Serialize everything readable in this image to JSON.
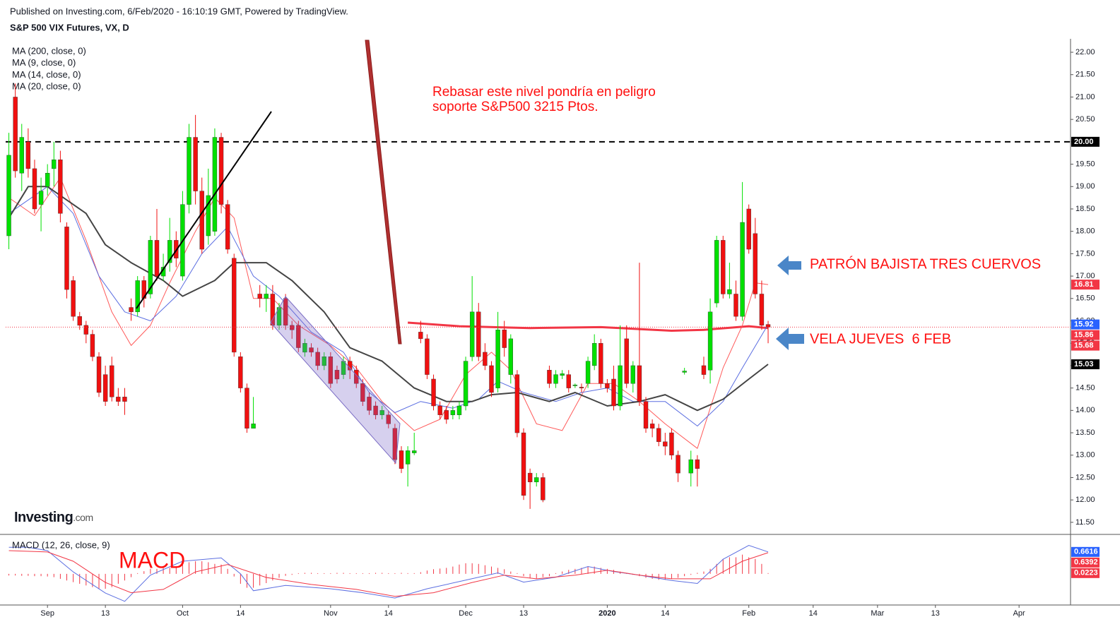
{
  "header": {
    "published": "Published on Investing.com, 6/Feb/2020 - 16:10:19 GMT, Powered by TradingView.",
    "symbol": "S&P 500 VIX Futures, VX, D"
  },
  "chart_data": [
    {
      "type": "candlestick",
      "up_color": "#00e000",
      "down_color": "#f01010",
      "open": [
        17.9,
        21.0,
        19.3,
        20.0,
        19.4,
        18.6,
        19.0,
        19.4,
        19.6,
        18.1,
        16.9,
        16.1,
        15.9,
        15.7,
        15.2,
        14.8,
        15.0,
        14.3,
        14.3,
        16.3,
        16.2,
        16.9,
        16.6,
        17.8,
        17.0,
        17.3,
        17.8,
        17.0,
        18.6,
        20.1,
        18.9,
        17.9,
        18.0,
        20.1,
        18.6,
        17.4,
        15.2,
        14.5,
        13.6,
        16.6,
        16.5,
        16.6,
        15.9,
        16.5,
        15.9,
        15.9,
        15.3,
        15.4,
        15.3,
        15.0,
        15.2,
        14.9,
        14.8,
        15.1,
        14.9,
        14.6,
        14.3,
        14.1,
        13.9,
        13.9,
        13.6,
        13.1,
        12.8,
        13.05,
        15.75,
        15.6,
        14.7,
        14.1,
        14.0,
        13.9,
        13.9,
        14.1,
        15.2,
        16.2,
        15.3,
        15.0,
        14.5,
        15.8,
        14.8,
        14.8,
        13.5,
        12.6,
        12.4,
        12.5,
        14.9,
        14.6,
        14.78,
        14.8,
        14.55,
        14.52,
        14.6,
        15.0,
        15.5,
        14.6,
        14.7,
        14.1,
        15.6,
        14.6,
        15.0,
        14.2,
        13.7,
        13.6,
        13.3,
        13.5,
        13.0,
        14.85,
        12.6,
        12.9,
        15.0,
        14.9,
        16.4,
        17.8,
        16.6,
        16.6,
        16.1,
        18.5,
        17.95,
        16.6,
        15.92
      ],
      "high": [
        20.2,
        21.3,
        20.4,
        20.3,
        19.6,
        19.2,
        19.5,
        20.0,
        19.8,
        18.2,
        17.0,
        16.2,
        16.0,
        15.8,
        15.3,
        15.0,
        15.2,
        14.5,
        14.5,
        16.5,
        17.0,
        17.0,
        17.9,
        18.5,
        17.5,
        18.3,
        18.0,
        18.9,
        20.4,
        20.6,
        19.2,
        19.4,
        20.3,
        20.2,
        18.7,
        17.5,
        15.3,
        14.6,
        14.3,
        16.8,
        16.8,
        16.8,
        16.4,
        16.6,
        16.0,
        16.0,
        15.6,
        15.5,
        15.4,
        15.3,
        15.3,
        15.0,
        15.2,
        15.2,
        15.0,
        14.7,
        14.4,
        14.2,
        14.1,
        14.0,
        13.7,
        13.2,
        13.2,
        13.5,
        16.0,
        15.7,
        14.8,
        14.2,
        14.1,
        14.1,
        14.2,
        15.2,
        17.0,
        16.4,
        15.5,
        15.1,
        16.2,
        16.0,
        15.7,
        14.9,
        13.6,
        12.7,
        12.6,
        12.6,
        15.0,
        14.9,
        14.9,
        14.9,
        14.6,
        14.6,
        15.2,
        15.7,
        15.6,
        14.7,
        15.0,
        15.9,
        15.9,
        15.1,
        17.3,
        14.3,
        13.8,
        13.7,
        13.5,
        13.6,
        13.1,
        14.95,
        13.1,
        13.0,
        15.2,
        16.5,
        17.9,
        17.9,
        17.3,
        16.9,
        19.1,
        18.6,
        18.3,
        16.9,
        16.0
      ],
      "low": [
        17.6,
        19.2,
        18.9,
        19.2,
        18.4,
        18.0,
        18.8,
        19.0,
        18.2,
        16.5,
        16.0,
        15.8,
        15.5,
        15.1,
        14.3,
        14.1,
        14.2,
        14.1,
        13.9,
        16.0,
        16.1,
        16.3,
        16.5,
        16.9,
        16.9,
        17.1,
        17.2,
        16.9,
        18.4,
        18.6,
        17.5,
        17.7,
        17.9,
        18.4,
        17.5,
        15.2,
        14.4,
        13.5,
        13.6,
        16.3,
        16.2,
        15.8,
        15.8,
        15.8,
        15.6,
        15.3,
        15.2,
        15.2,
        14.9,
        14.9,
        14.5,
        14.6,
        14.7,
        14.7,
        14.5,
        14.1,
        13.9,
        13.8,
        13.8,
        13.6,
        12.8,
        12.6,
        12.3,
        13.0,
        15.5,
        14.7,
        14.0,
        13.8,
        13.7,
        13.8,
        13.8,
        14.0,
        15.1,
        15.1,
        14.9,
        14.3,
        14.4,
        15.2,
        14.6,
        13.4,
        12.0,
        11.8,
        12.3,
        11.95,
        14.5,
        14.5,
        14.7,
        14.4,
        14.5,
        14.4,
        14.5,
        14.9,
        14.5,
        14.4,
        14.0,
        14.0,
        14.5,
        14.4,
        14.1,
        13.5,
        13.4,
        13.2,
        13.0,
        12.9,
        12.4,
        14.8,
        12.3,
        12.3,
        14.7,
        14.6,
        16.3,
        16.5,
        16.5,
        16.0,
        16.0,
        17.5,
        16.5,
        15.8,
        15.5
      ],
      "close": [
        19.7,
        19.35,
        20.1,
        19.4,
        18.5,
        18.9,
        19.3,
        19.6,
        18.4,
        16.7,
        16.1,
        15.9,
        15.7,
        15.2,
        14.4,
        14.2,
        14.3,
        14.2,
        14.2,
        16.2,
        16.9,
        16.5,
        17.8,
        17.0,
        17.2,
        17.8,
        17.4,
        18.6,
        20.1,
        18.9,
        17.6,
        18.8,
        20.1,
        18.6,
        17.6,
        15.3,
        14.5,
        13.6,
        13.7,
        16.5,
        16.6,
        15.9,
        16.3,
        15.9,
        15.8,
        15.4,
        15.5,
        15.3,
        15.0,
        15.2,
        14.6,
        14.7,
        15.1,
        14.9,
        14.6,
        14.2,
        14.0,
        13.9,
        14.0,
        13.7,
        12.9,
        12.7,
        13.1,
        13.1,
        15.6,
        14.8,
        14.1,
        13.9,
        13.8,
        14.0,
        14.1,
        15.1,
        16.2,
        15.2,
        15.0,
        14.4,
        15.8,
        15.4,
        15.6,
        13.5,
        12.1,
        12.4,
        12.5,
        12.0,
        14.6,
        14.8,
        14.82,
        14.5,
        14.57,
        14.5,
        15.1,
        15.5,
        14.6,
        14.5,
        14.1,
        15.0,
        14.6,
        15.0,
        14.2,
        13.6,
        13.6,
        13.3,
        13.2,
        13.0,
        12.6,
        14.88,
        12.9,
        12.7,
        14.8,
        16.2,
        17.8,
        16.6,
        16.7,
        16.1,
        18.2,
        17.6,
        16.6,
        15.9,
        15.86
      ],
      "series": [
        {
          "name": "MA (200, close, 0)",
          "color": "#f23645",
          "width": 3,
          "x": [
            62,
            70,
            81,
            92,
            103,
            108,
            115,
            118
          ],
          "values": [
            15.96,
            15.88,
            15.84,
            15.86,
            15.78,
            15.8,
            15.88,
            15.84
          ]
        },
        {
          "name": "MA (9, close, 0)",
          "color": "#ff5a5a",
          "width": 1,
          "x": [
            0,
            4,
            8,
            12,
            16,
            19,
            22,
            25,
            29,
            32,
            35,
            38,
            41,
            45,
            50,
            54,
            58,
            63,
            67,
            71,
            75,
            78,
            82,
            86,
            90,
            94,
            98,
            102,
            107,
            111,
            114,
            116,
            118
          ],
          "values": [
            18.75,
            18.35,
            19.2,
            17.8,
            16.2,
            15.45,
            15.9,
            16.85,
            18.0,
            18.75,
            18.3,
            16.5,
            16.5,
            15.9,
            15.45,
            14.95,
            14.2,
            13.55,
            13.8,
            14.8,
            15.3,
            14.9,
            13.7,
            13.55,
            14.6,
            14.6,
            14.2,
            13.7,
            13.15,
            14.95,
            15.9,
            16.85,
            16.81
          ]
        },
        {
          "name": "MA (14, close, 0)",
          "color": "#5b6ee1",
          "width": 1,
          "x": [
            0,
            6,
            10,
            14,
            18,
            22,
            26,
            30,
            34,
            38,
            42,
            47,
            52,
            56,
            60,
            64,
            69,
            73,
            76,
            80,
            85,
            89,
            93,
            97,
            102,
            107,
            111,
            114,
            118
          ],
          "values": [
            18.4,
            19.0,
            18.4,
            17.0,
            16.2,
            16.0,
            16.55,
            17.5,
            18.1,
            17.0,
            16.55,
            15.75,
            15.3,
            14.4,
            13.95,
            14.2,
            14.05,
            14.25,
            14.65,
            14.4,
            14.2,
            14.4,
            14.5,
            14.2,
            14.2,
            13.65,
            14.2,
            14.95,
            15.92
          ]
        },
        {
          "name": "MA (20, close, 0)",
          "color": "#444444",
          "width": 2,
          "x": [
            0,
            3,
            6,
            12,
            15,
            19,
            24,
            27,
            32,
            35,
            40,
            44,
            49,
            53,
            58,
            63,
            68,
            72,
            75,
            79,
            84,
            88,
            93,
            98,
            102,
            107,
            111,
            115,
            118
          ],
          "values": [
            18.3,
            19.0,
            19.0,
            18.4,
            17.7,
            17.3,
            16.9,
            16.55,
            16.9,
            17.3,
            17.3,
            16.9,
            16.2,
            15.4,
            15.1,
            14.5,
            14.2,
            14.2,
            14.35,
            14.4,
            14.2,
            14.4,
            14.1,
            14.2,
            14.35,
            14.0,
            14.25,
            14.7,
            15.03
          ]
        }
      ],
      "xlim": [
        -0.5,
        165
      ],
      "xticks": [
        {
          "value": 6,
          "label": "Sep"
        },
        {
          "value": 15,
          "label": "13"
        },
        {
          "value": 27,
          "label": "Oct"
        },
        {
          "value": 36,
          "label": "14"
        },
        {
          "value": 50,
          "label": "Nov"
        },
        {
          "value": 59,
          "label": "14"
        },
        {
          "value": 71,
          "label": "Dec"
        },
        {
          "value": 80,
          "label": "13"
        },
        {
          "value": 93,
          "label": "2020"
        },
        {
          "value": 102,
          "label": "14"
        },
        {
          "value": 115,
          "label": "Feb"
        },
        {
          "value": 125,
          "label": "14"
        },
        {
          "value": 135,
          "label": "Mar"
        },
        {
          "value": 144,
          "label": "13"
        },
        {
          "value": 157,
          "label": "Apr"
        }
      ],
      "ylim": [
        11.23,
        22.3
      ],
      "yticks": [
        {
          "value": 11.5,
          "label": "11.50"
        },
        {
          "value": 12,
          "label": "12.00"
        },
        {
          "value": 12.5,
          "label": "12.50"
        },
        {
          "value": 13,
          "label": "13.00"
        },
        {
          "value": 13.5,
          "label": "13.50"
        },
        {
          "value": 14,
          "label": "14.00"
        },
        {
          "value": 14.5,
          "label": "14.50"
        },
        {
          "value": 15,
          "label": "15.00"
        },
        {
          "value": 15.5,
          "label": "15.50"
        },
        {
          "value": 16,
          "label": "16.00"
        },
        {
          "value": 16.5,
          "label": "16.50"
        },
        {
          "value": 17,
          "label": "17.00"
        },
        {
          "value": 17.5,
          "label": "17.50"
        },
        {
          "value": 18,
          "label": "18.00"
        },
        {
          "value": 18.5,
          "label": "18.50"
        },
        {
          "value": 19,
          "label": "19.00"
        },
        {
          "value": 19.5,
          "label": "19.50"
        },
        {
          "value": 20,
          "label": "20.00"
        },
        {
          "value": 20.5,
          "label": "20.50"
        },
        {
          "value": 21,
          "label": "21.00"
        },
        {
          "value": 21.5,
          "label": "21.50"
        },
        {
          "value": 22,
          "label": "22.00"
        }
      ],
      "grid": false,
      "hline": {
        "value": 20,
        "label": "20.00",
        "color": "#000000"
      },
      "price_markers": [
        {
          "value": 16.81,
          "color": "#f23645"
        },
        {
          "value": 15.92,
          "color": "#2962ff"
        },
        {
          "value": 15.86,
          "color": "#f23645",
          "dotted": true
        },
        {
          "value": 15.68,
          "color": "#f23645"
        },
        {
          "value": 15.03,
          "color": "#000000"
        }
      ],
      "annotations": [
        "Rebasar este nivel pondría en peligro",
        "soporte S&P500 3215 Ptos.",
        "PATRÓN BAJISTA TRES CUERVOS",
        "VELA JUEVES  6 FEB"
      ],
      "logo": {
        "main": "Investing",
        "suffix": ".com"
      }
    },
    {
      "type": "macd",
      "title": "MACD (12, 26, close, 9)",
      "annotation": "MACD",
      "series": [
        {
          "color": "#5b6ee1",
          "x": [
            0,
            3,
            6,
            10,
            15,
            18,
            22,
            27,
            33,
            36,
            38,
            43,
            50,
            55,
            60,
            65,
            71,
            76,
            80,
            85,
            90,
            94,
            98,
            103,
            107,
            111,
            115,
            118
          ],
          "values": [
            0.8,
            0.8,
            0.7,
            0.06,
            -0.58,
            -0.83,
            -0.04,
            0.38,
            0.48,
            0.0,
            -0.51,
            -0.35,
            -0.45,
            -0.57,
            -0.73,
            -0.45,
            -0.19,
            0.03,
            -0.25,
            -0.1,
            0.22,
            0.07,
            -0.04,
            -0.2,
            -0.29,
            0.44,
            0.86,
            0.6616
          ]
        },
        {
          "color": "#f23645",
          "x": [
            0,
            6,
            10,
            15,
            19,
            24,
            29,
            34,
            40,
            47,
            54,
            60,
            66,
            72,
            77,
            82,
            88,
            93,
            98,
            103,
            109,
            114,
            118
          ],
          "values": [
            0.7,
            0.66,
            0.38,
            -0.26,
            -0.57,
            -0.47,
            0.06,
            0.28,
            -0.11,
            -0.32,
            -0.47,
            -0.68,
            -0.57,
            -0.26,
            -0.04,
            -0.15,
            -0.04,
            0.11,
            -0.04,
            -0.15,
            -0.15,
            0.38,
            0.6392
          ]
        }
      ],
      "histogram": {
        "color": "#f23645",
        "values": [
          -0.05,
          -0.05,
          -0.06,
          -0.06,
          -0.07,
          -0.07,
          -0.08,
          -0.1,
          -0.15,
          -0.2,
          -0.25,
          -0.3,
          -0.35,
          -0.4,
          -0.45,
          -0.45,
          -0.4,
          -0.3,
          -0.2,
          -0.1,
          0.0,
          0.08,
          0.15,
          0.15,
          0.18,
          0.18,
          0.22,
          0.3,
          0.35,
          0.38,
          0.38,
          0.35,
          0.3,
          0.28,
          0.15,
          -0.08,
          -0.3,
          -0.42,
          -0.42,
          -0.35,
          -0.28,
          -0.2,
          -0.12,
          -0.06,
          -0.03,
          0.02,
          0.03,
          0.03,
          0.02,
          0.02,
          0.02,
          0.03,
          0.03,
          0.02,
          0.02,
          0.02,
          0.02,
          0.03,
          0.03,
          0.02,
          0.02,
          0.03,
          0.0,
          0.0,
          0.05,
          0.1,
          0.14,
          0.16,
          0.18,
          0.22,
          0.28,
          0.32,
          0.32,
          0.3,
          0.26,
          0.22,
          0.18,
          0.14,
          0.07,
          0.0,
          -0.07,
          -0.14,
          -0.14,
          -0.1,
          -0.07,
          0.0,
          0.07,
          0.12,
          0.15,
          0.18,
          0.22,
          0.22,
          0.18,
          0.15,
          0.12,
          0.07,
          0.0,
          -0.03,
          -0.07,
          -0.12,
          -0.15,
          -0.18,
          -0.18,
          -0.15,
          -0.12,
          -0.07,
          -0.03,
          0.03,
          0.07,
          0.15,
          0.3,
          0.45,
          0.5,
          0.5,
          0.58,
          0.5,
          0.45,
          0.3,
          0.0223
        ]
      },
      "ylim": [
        -0.94,
        1.19
      ],
      "markers": [
        {
          "value": 0.6616,
          "color": "#2962ff"
        },
        {
          "value": 0.6392,
          "color": "#f23645"
        },
        {
          "value": 0.0223,
          "color": "#f23645"
        }
      ]
    }
  ]
}
